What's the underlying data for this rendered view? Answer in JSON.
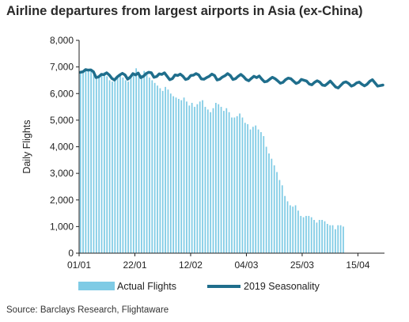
{
  "chart_data": {
    "type": "bar",
    "title": "Airline departures from largest airports in Asia (ex-China)",
    "ylabel": "Daily Flights",
    "xlabel": "",
    "ylim": [
      0,
      8000
    ],
    "yticks": [
      "0",
      "1,000",
      "2,000",
      "3,000",
      "4,000",
      "5,000",
      "6,000",
      "7,000",
      "8,000"
    ],
    "xtick_labels": [
      "01/01",
      "22/01",
      "12/02",
      "04/03",
      "25/03",
      "15/04"
    ],
    "xtick_days": [
      0,
      21,
      42,
      63,
      84,
      105
    ],
    "x_range_days": [
      0,
      115
    ],
    "grid": false,
    "legend_position": "bottom",
    "series": [
      {
        "name": "Actual Flights",
        "render": "bar",
        "color": "#7FCBE5",
        "values": [
          6750,
          6850,
          6900,
          6850,
          6900,
          6700,
          6550,
          6650,
          6700,
          6800,
          6650,
          6500,
          6450,
          6550,
          6650,
          6700,
          6600,
          6500,
          6450,
          6600,
          6750,
          6950,
          6800,
          6700,
          6850,
          6750,
          6600,
          6500,
          6400,
          6300,
          6200,
          6100,
          6250,
          6150,
          6000,
          5900,
          5850,
          5800,
          5750,
          5850,
          5700,
          5550,
          5650,
          5500,
          5600,
          5700,
          5750,
          5500,
          5400,
          5300,
          5450,
          5650,
          5600,
          5500,
          5350,
          5450,
          5300,
          5100,
          5100,
          5150,
          5250,
          5100,
          4900,
          4850,
          4650,
          4750,
          4800,
          4650,
          4550,
          4400,
          4000,
          3750,
          3550,
          3300,
          3050,
          2750,
          2550,
          2150,
          1950,
          1800,
          1750,
          1800,
          1600,
          1400,
          1350,
          1400,
          1400,
          1350,
          1250,
          1150,
          1250,
          1250,
          1200,
          1100,
          1050,
          1050,
          900,
          1050,
          1050,
          1000
        ]
      },
      {
        "name": "2019 Seasonality",
        "render": "line",
        "color": "#1F6E8C",
        "values": [
          6800,
          6820,
          6900,
          6880,
          6890,
          6820,
          6600,
          6630,
          6720,
          6710,
          6780,
          6700,
          6570,
          6510,
          6620,
          6700,
          6760,
          6700,
          6540,
          6620,
          6750,
          6700,
          6770,
          6600,
          6650,
          6750,
          6800,
          6780,
          6610,
          6640,
          6740,
          6720,
          6780,
          6650,
          6520,
          6560,
          6700,
          6680,
          6730,
          6650,
          6530,
          6560,
          6680,
          6690,
          6750,
          6700,
          6550,
          6540,
          6600,
          6650,
          6730,
          6680,
          6510,
          6540,
          6620,
          6670,
          6750,
          6680,
          6530,
          6560,
          6650,
          6720,
          6640,
          6530,
          6480,
          6570,
          6650,
          6600,
          6660,
          6540,
          6440,
          6460,
          6540,
          6610,
          6560,
          6480,
          6390,
          6420,
          6520,
          6580,
          6560,
          6470,
          6380,
          6420,
          6530,
          6500,
          6470,
          6360,
          6330,
          6420,
          6480,
          6430,
          6320,
          6300,
          6380,
          6470,
          6360,
          6250,
          6210,
          6310,
          6410,
          6440,
          6380,
          6280,
          6320,
          6400,
          6430,
          6350,
          6290,
          6350,
          6460,
          6520,
          6400,
          6280,
          6300,
          6320
        ]
      }
    ]
  },
  "source": "Source: Barclays Research, Flightaware"
}
